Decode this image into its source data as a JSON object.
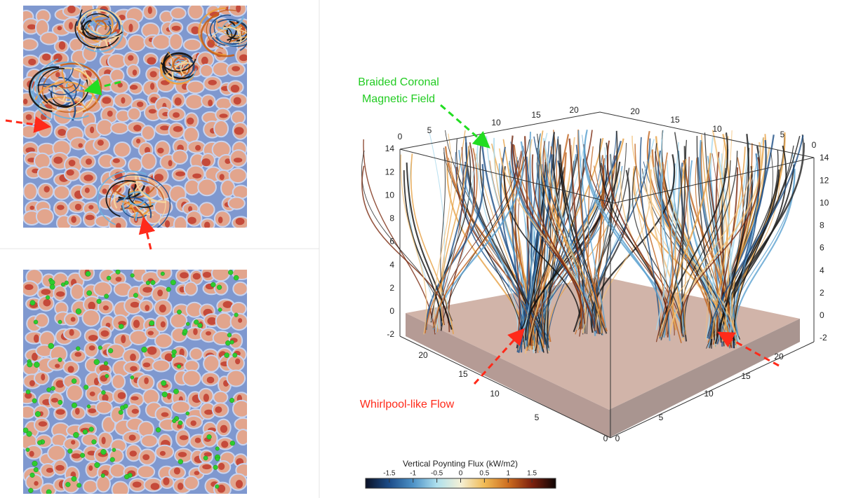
{
  "annotations": {
    "braided_field": [
      "Braided Coronal",
      "Magnetic Field"
    ],
    "whirlpool_flow": "Whirlpool-like Flow"
  },
  "colorbar": {
    "title": "Vertical Poynting Flux (kW/m2)",
    "lim": [
      -2,
      2
    ],
    "ticks": [
      -1.5,
      -1,
      -0.5,
      0,
      0.5,
      1,
      1.5
    ],
    "colors": [
      "#0b1226",
      "#1c4d8a",
      "#4d92c7",
      "#aee0ee",
      "#f4f0d6",
      "#f1bb55",
      "#cd6d1f",
      "#7d200e",
      "#0e0504"
    ]
  },
  "axes": {
    "top_left": [
      0,
      5,
      10,
      15,
      20
    ],
    "top_right": [
      20,
      15,
      10,
      5,
      0
    ],
    "left_vertical": [
      14,
      12,
      10,
      8,
      6,
      4,
      2,
      0,
      -2
    ],
    "right_vertical": [
      14,
      12,
      10,
      8,
      6,
      4,
      2,
      0,
      -2
    ],
    "front_left": [
      20,
      15,
      10,
      5,
      0
    ],
    "front_right": [
      0,
      5,
      10,
      15,
      20
    ]
  }
}
